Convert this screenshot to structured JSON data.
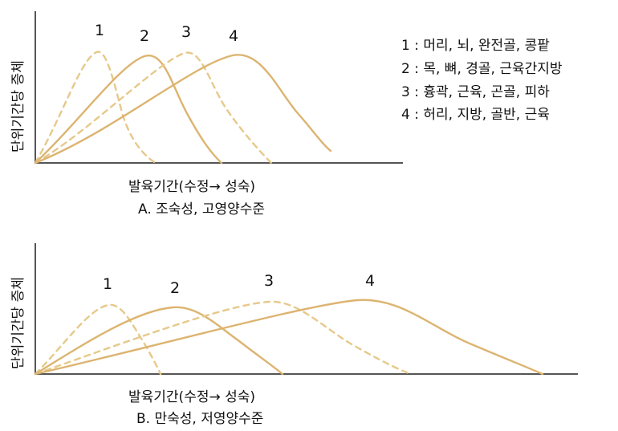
{
  "panels": [
    {
      "id": "A",
      "ylabel": "단위기간당 증체",
      "xlabel": "발육기간(수정→ 성숙)",
      "caption": "A. 조숙성, 고영양수준",
      "curve_labels": [
        "1",
        "2",
        "3",
        "4"
      ]
    },
    {
      "id": "B",
      "ylabel": "단위기간당 증체",
      "xlabel": "발육기간(수정→ 성숙)",
      "caption": "B. 만숙성, 저영양수준",
      "curve_labels": [
        "1",
        "2",
        "3",
        "4"
      ]
    }
  ],
  "legend": [
    "1 : 머리, 뇌, 완전골, 콩팥",
    "2 : 목, 뼈, 경골, 근육간지방",
    "3 : 흉곽, 근육, 곤골, 피하",
    "4 : 허리, 지방, 골반, 근육"
  ],
  "colors": {
    "curve_light": "#e6c98a",
    "curve_dark": "#d7ad6a",
    "axis": "#555555"
  }
}
